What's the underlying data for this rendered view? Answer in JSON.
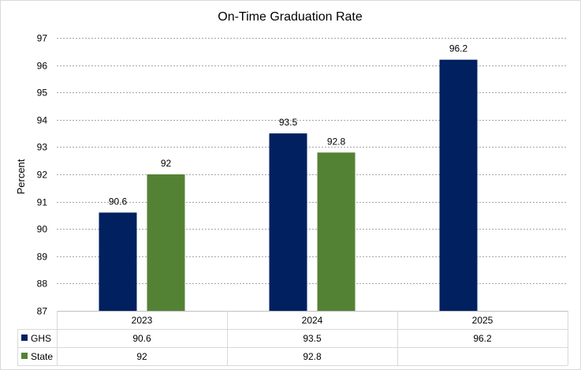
{
  "chart_data": {
    "type": "bar",
    "title": "On-Time Graduation Rate",
    "xlabel": "",
    "ylabel": "Percent",
    "ylim": [
      87,
      97
    ],
    "yticks": [
      87,
      88,
      89,
      90,
      91,
      92,
      93,
      94,
      95,
      96,
      97
    ],
    "grid": true,
    "legend": "data table",
    "categories": [
      "2023",
      "2024",
      "2025"
    ],
    "series": [
      {
        "name": "GHS",
        "color": "#002060",
        "values": [
          90.6,
          93.5,
          96.2
        ],
        "labels": [
          "90.6",
          "93.5",
          "96.2"
        ]
      },
      {
        "name": "State",
        "color": "#548235",
        "values": [
          92,
          92.8,
          null
        ],
        "labels": [
          "92",
          "92.8",
          ""
        ]
      }
    ]
  }
}
